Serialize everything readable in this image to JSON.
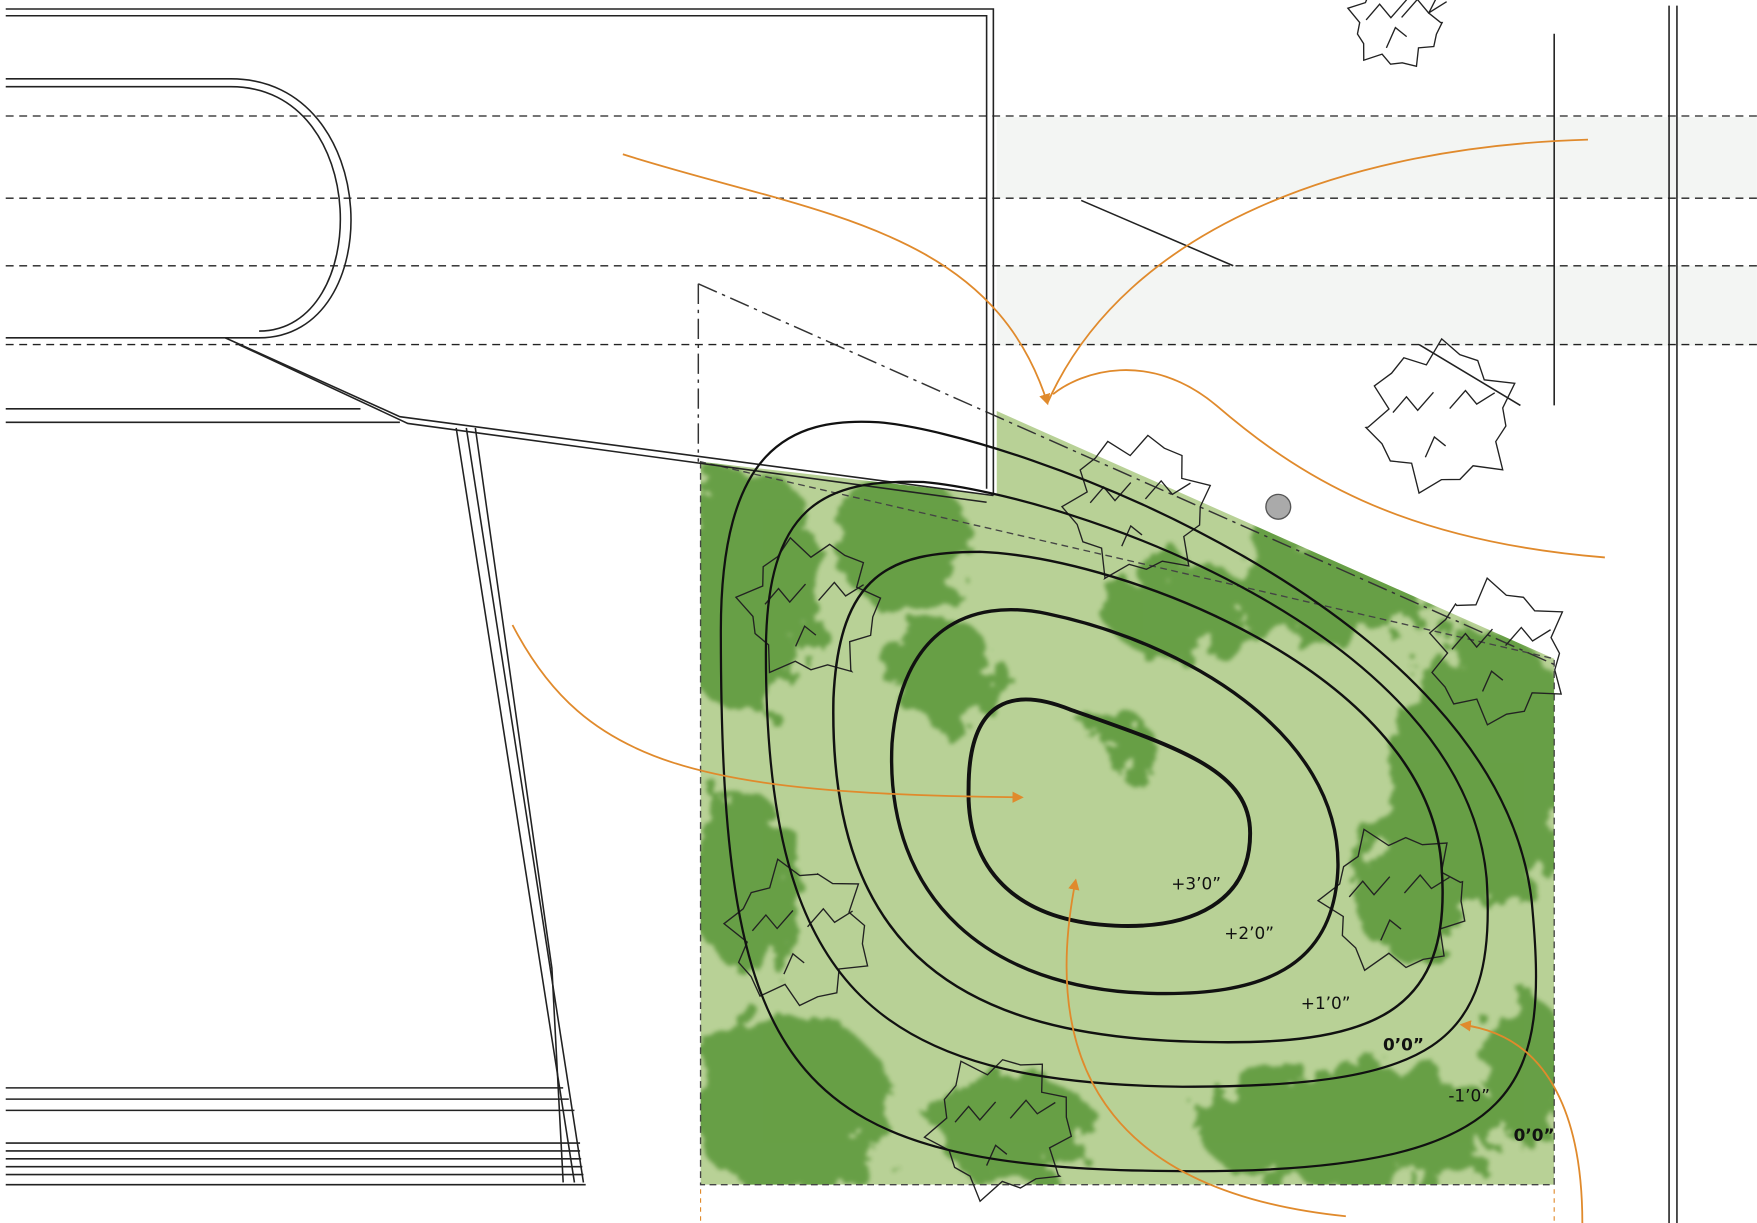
{
  "contour_labels": [
    "+3’0”",
    "+2’0”",
    "+1’0”",
    "0’0”",
    "-1’0”",
    "0’0”"
  ]
}
